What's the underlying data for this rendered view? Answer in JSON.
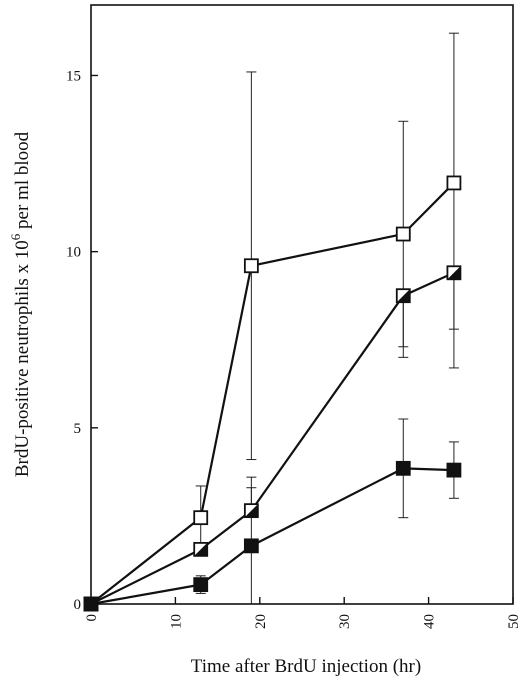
{
  "chart_data": {
    "type": "line",
    "title": "",
    "xlabel": "Time after BrdU injection (hr)",
    "ylabel_parts": {
      "before": "BrdU-positive neutrophils x 10",
      "superscript": "6",
      "after": " per ml blood"
    },
    "xlim": [
      0,
      50
    ],
    "ylim": [
      0,
      17
    ],
    "xticks": [
      0,
      10,
      20,
      30,
      40,
      50
    ],
    "xtick_labels": [
      "0",
      "10",
      "20",
      "30",
      "40",
      "50"
    ],
    "yticks": [
      0,
      5,
      10,
      15
    ],
    "ytick_labels": [
      "0",
      "5",
      "10",
      "15"
    ],
    "grid": false,
    "legend": "none",
    "series": [
      {
        "marker": "open-square",
        "x": [
          0,
          13,
          19,
          37,
          43
        ],
        "y": [
          0,
          2.45,
          9.6,
          10.5,
          11.95
        ],
        "err_low": [
          0,
          1.4,
          4.1,
          7.3,
          7.8
        ],
        "err_high": [
          0,
          3.35,
          15.1,
          13.7,
          16.2
        ]
      },
      {
        "marker": "half-filled-square",
        "x": [
          0,
          13,
          19,
          37,
          43
        ],
        "y": [
          0,
          1.55,
          2.65,
          8.75,
          9.4
        ],
        "err_low": [
          0,
          1.5,
          2.5,
          7.0,
          6.7
        ],
        "err_high": [
          0,
          1.6,
          3.6,
          8.8,
          9.5
        ]
      },
      {
        "marker": "filled-square",
        "x": [
          0,
          13,
          19,
          37,
          43
        ],
        "y": [
          0,
          0.55,
          1.65,
          3.85,
          3.8
        ],
        "err_low": [
          0,
          0.3,
          0,
          2.45,
          3.0
        ],
        "err_high": [
          0,
          0.8,
          3.3,
          5.25,
          4.6
        ]
      }
    ]
  }
}
